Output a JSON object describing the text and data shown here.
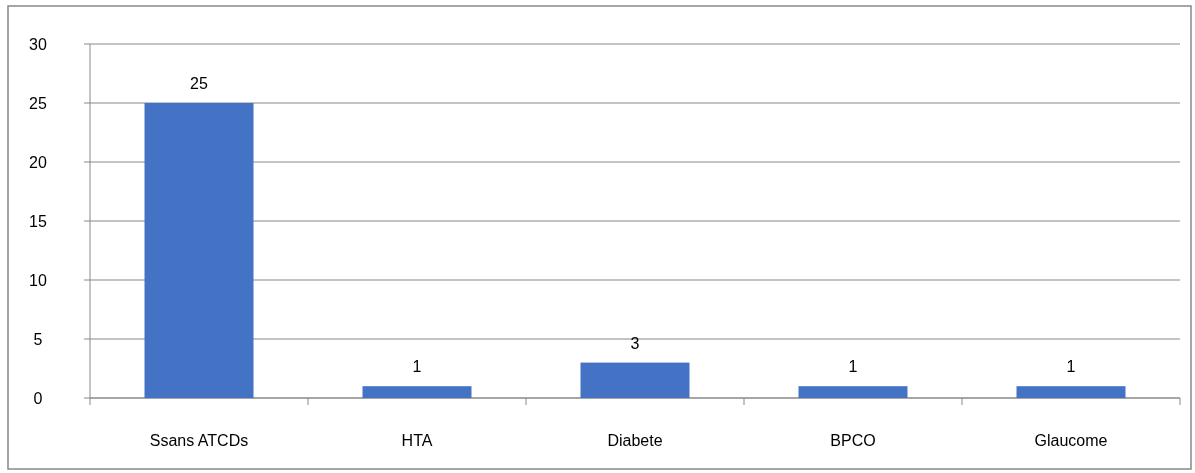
{
  "chart_data": {
    "type": "bar",
    "categories": [
      "Ssans ATCDs",
      "HTA",
      "Diabete",
      "BPCO",
      "Glaucome"
    ],
    "values": [
      25,
      1,
      3,
      1,
      1
    ],
    "color": "#4472c4",
    "ylim": [
      0,
      30
    ],
    "yticks": [
      0,
      5,
      10,
      15,
      20,
      25,
      30
    ],
    "grid": "y",
    "data_labels": true
  }
}
